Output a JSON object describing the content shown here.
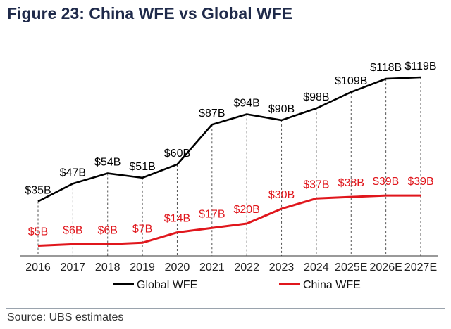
{
  "title": "Figure 23: China WFE vs Global WFE",
  "source": "Source: UBS estimates",
  "colors": {
    "global": "#000000",
    "china": "#e0161c",
    "title": "#1f2a4a",
    "dashed": "#555555"
  },
  "chart_data": {
    "type": "line",
    "categories": [
      "2016",
      "2017",
      "2018",
      "2019",
      "2020",
      "2021",
      "2022",
      "2023",
      "2024",
      "2025E",
      "2026E",
      "2027E"
    ],
    "series": [
      {
        "name": "Global WFE",
        "values": [
          35,
          47,
          54,
          51,
          60,
          87,
          94,
          90,
          98,
          109,
          118,
          119
        ],
        "labels": [
          "$35B",
          "$47B",
          "$54B",
          "$51B",
          "$60B",
          "$87B",
          "$94B",
          "$90B",
          "$98B",
          "$109B",
          "$118B",
          "$119B"
        ],
        "color": "#000000"
      },
      {
        "name": "China WFE",
        "values": [
          5,
          6,
          6,
          7,
          14,
          17,
          20,
          30,
          37,
          38,
          39,
          39
        ],
        "labels": [
          "$5B",
          "$6B",
          "$6B",
          "$7B",
          "$14B",
          "$17B",
          "$20B",
          "$30B",
          "$37B",
          "$38B",
          "$39B",
          "$39B"
        ],
        "color": "#e0161c"
      }
    ],
    "xlabel": "",
    "ylabel": "",
    "ylim": [
      0,
      125
    ],
    "grid": false,
    "legend": "bottom"
  }
}
